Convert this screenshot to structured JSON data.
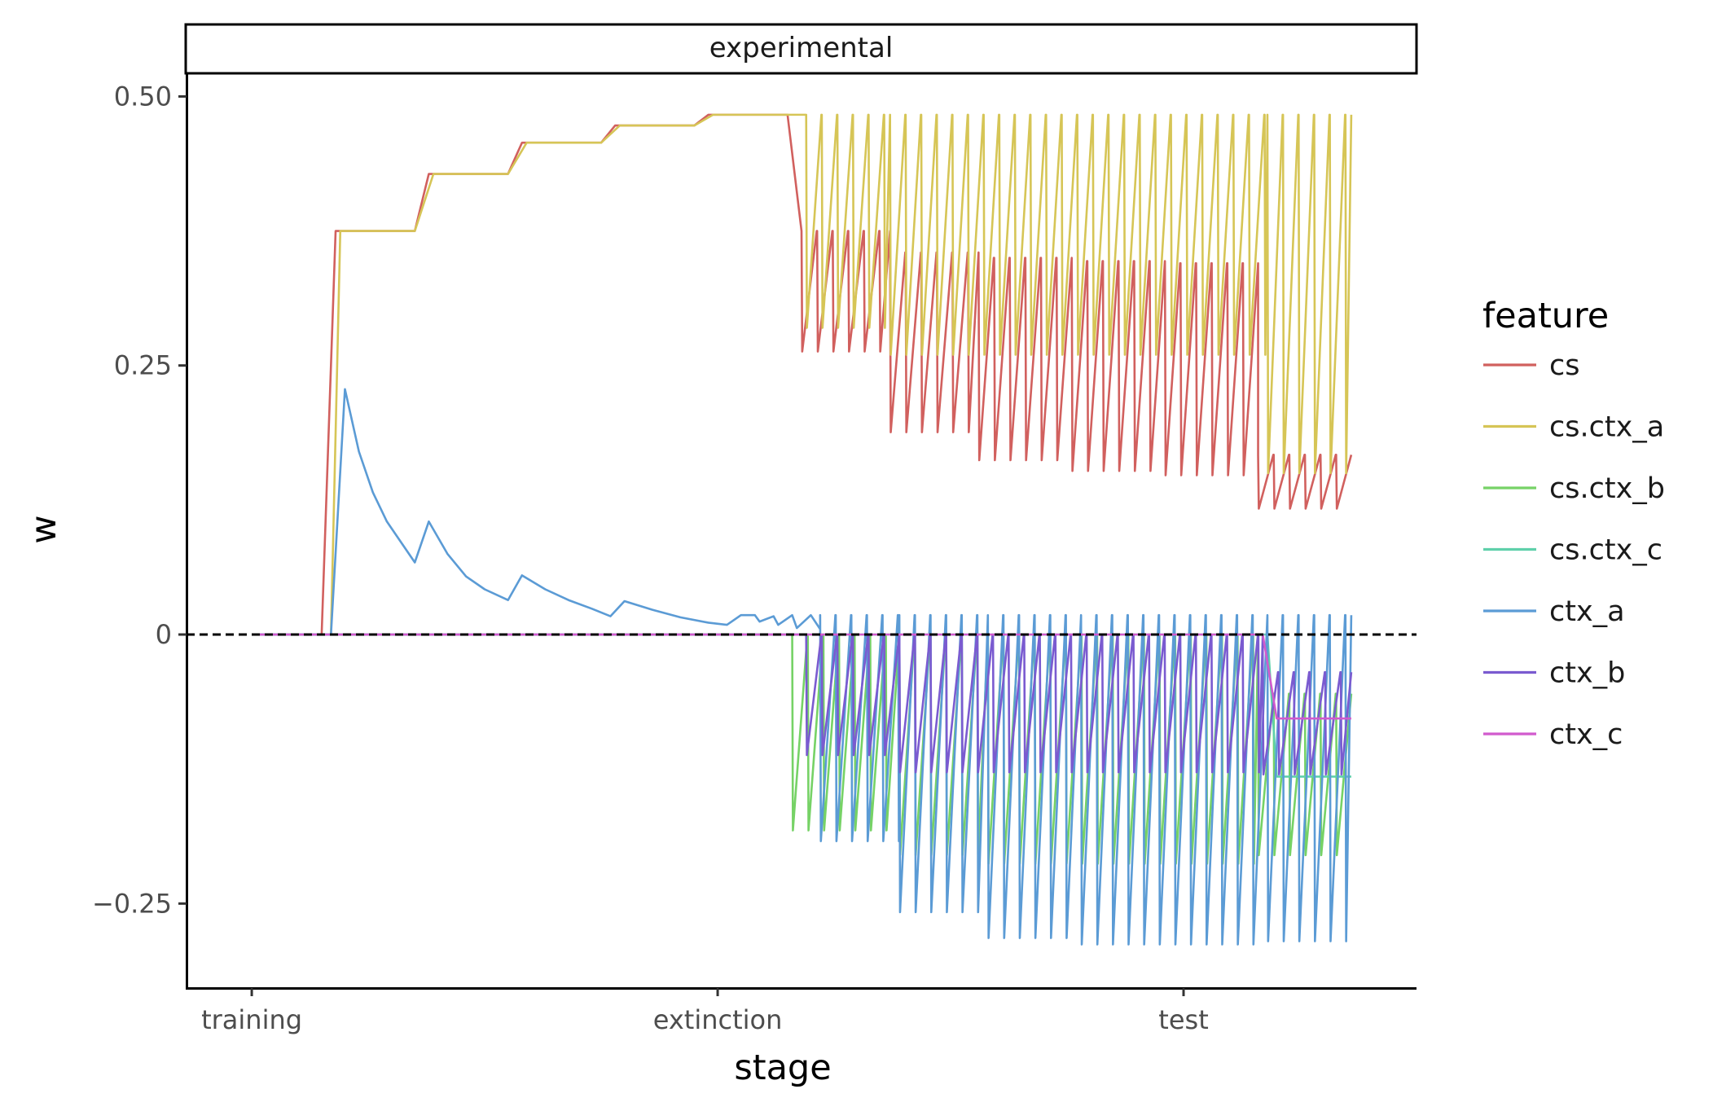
{
  "chart_data": {
    "type": "line",
    "facet": "experimental",
    "xlabel": "stage",
    "ylabel": "w",
    "x_ticks": [
      "training",
      "extinction",
      "test"
    ],
    "y_ticks": [
      {
        "value": 0.5,
        "label": "0.50"
      },
      {
        "value": 0.25,
        "label": "0.25"
      },
      {
        "value": 0,
        "label": "0"
      },
      {
        "value": -0.25,
        "label": "−0.25"
      }
    ],
    "xlim": [
      -0.14,
      2.5
    ],
    "ylim": [
      -0.3285,
      0.5215
    ],
    "reference_line": {
      "y": 0,
      "style": "dashed",
      "color": "#000000"
    },
    "legend": {
      "title": "feature",
      "position": "right"
    },
    "series": [
      {
        "name": "cs",
        "color": "#D1605E",
        "segments": [
          {
            "type": "line",
            "points": [
              [
                0,
                0
              ],
              [
                0.15,
                0
              ],
              [
                0.18,
                0.375
              ],
              [
                0.35,
                0.375
              ],
              [
                0.38,
                0.428
              ],
              [
                0.55,
                0.428
              ],
              [
                0.58,
                0.457
              ],
              [
                0.75,
                0.457
              ],
              [
                0.78,
                0.473
              ],
              [
                0.95,
                0.473
              ],
              [
                0.98,
                0.483
              ],
              [
                1.15,
                0.483
              ],
              [
                1.18,
                0.375
              ]
            ]
          },
          {
            "type": "saw",
            "start": 1.18,
            "end": 1.37,
            "period": 0.0335,
            "high": 0.375,
            "low": 0.263
          },
          {
            "type": "saw",
            "start": 1.37,
            "end": 1.56,
            "period": 0.0335,
            "high": 0.355,
            "low": 0.188
          },
          {
            "type": "saw",
            "start": 1.56,
            "end": 1.76,
            "period": 0.0335,
            "high": 0.35,
            "low": 0.162
          },
          {
            "type": "saw",
            "start": 1.76,
            "end": 1.96,
            "period": 0.0335,
            "high": 0.347,
            "low": 0.152
          },
          {
            "type": "saw",
            "start": 1.96,
            "end": 2.16,
            "period": 0.0335,
            "high": 0.345,
            "low": 0.148
          },
          {
            "type": "saw",
            "start": 2.16,
            "end": 2.36,
            "period": 0.0335,
            "high": 0.167,
            "low": 0.117
          }
        ]
      },
      {
        "name": "cs.ctx_a",
        "color": "#D6C556",
        "segments": [
          {
            "type": "line",
            "points": [
              [
                0,
                0
              ],
              [
                0.17,
                0
              ],
              [
                0.19,
                0.375
              ],
              [
                0.35,
                0.375
              ],
              [
                0.39,
                0.428
              ],
              [
                0.55,
                0.428
              ],
              [
                0.59,
                0.457
              ],
              [
                0.75,
                0.457
              ],
              [
                0.79,
                0.473
              ],
              [
                0.95,
                0.473
              ],
              [
                0.99,
                0.483
              ],
              [
                1.19,
                0.483
              ]
            ]
          },
          {
            "type": "saw",
            "start": 1.19,
            "end": 1.37,
            "period": 0.0335,
            "high": 0.483,
            "low": 0.285
          },
          {
            "type": "saw",
            "start": 1.37,
            "end": 2.18,
            "period": 0.0335,
            "high": 0.483,
            "low": 0.26
          },
          {
            "type": "saw",
            "start": 2.18,
            "end": 2.36,
            "period": 0.0335,
            "high": 0.483,
            "low": 0.15
          }
        ]
      },
      {
        "name": "cs.ctx_b",
        "color": "#76D266",
        "segments": [
          {
            "type": "line",
            "points": [
              [
                0,
                0
              ],
              [
                1.16,
                0
              ]
            ]
          },
          {
            "type": "saw",
            "start": 1.16,
            "end": 1.39,
            "period": 0.0335,
            "high": 0,
            "low": -0.182
          },
          {
            "type": "saw",
            "start": 1.39,
            "end": 1.58,
            "period": 0.0335,
            "high": 0,
            "low": -0.205
          },
          {
            "type": "saw",
            "start": 1.58,
            "end": 2.16,
            "period": 0.0335,
            "high": 0,
            "low": -0.213
          },
          {
            "type": "saw",
            "start": 2.16,
            "end": 2.36,
            "period": 0.0335,
            "high": -0.055,
            "low": -0.205
          }
        ]
      },
      {
        "name": "cs.ctx_c",
        "color": "#5FD0AA",
        "segments": [
          {
            "type": "line",
            "points": [
              [
                0,
                0
              ],
              [
                2.18,
                0
              ],
              [
                2.2,
                -0.132
              ],
              [
                2.36,
                -0.132
              ]
            ]
          }
        ]
      },
      {
        "name": "ctx_a",
        "color": "#5B9BD5",
        "segments": [
          {
            "type": "line",
            "points": [
              [
                0,
                0
              ],
              [
                0.17,
                0
              ],
              [
                0.2,
                0.228
              ],
              [
                0.23,
                0.17
              ],
              [
                0.26,
                0.132
              ],
              [
                0.29,
                0.105
              ],
              [
                0.32,
                0.086
              ],
              [
                0.35,
                0.067
              ],
              [
                0.38,
                0.105
              ],
              [
                0.42,
                0.075
              ],
              [
                0.46,
                0.054
              ],
              [
                0.5,
                0.042
              ],
              [
                0.55,
                0.032
              ],
              [
                0.58,
                0.055
              ],
              [
                0.63,
                0.042
              ],
              [
                0.68,
                0.032
              ],
              [
                0.73,
                0.024
              ],
              [
                0.77,
                0.017
              ],
              [
                0.8,
                0.031
              ],
              [
                0.86,
                0.023
              ],
              [
                0.92,
                0.016
              ],
              [
                0.98,
                0.011
              ],
              [
                1.02,
                0.009
              ],
              [
                1.05,
                0.018
              ],
              [
                1.08,
                0.018
              ],
              [
                1.09,
                0.012
              ],
              [
                1.12,
                0.017
              ],
              [
                1.13,
                0.009
              ],
              [
                1.16,
                0.018
              ],
              [
                1.17,
                0.006
              ],
              [
                1.2,
                0.018
              ],
              [
                1.22,
                0.005
              ]
            ]
          },
          {
            "type": "saw",
            "start": 1.22,
            "end": 1.39,
            "period": 0.0335,
            "high": 0.018,
            "low": -0.192
          },
          {
            "type": "saw",
            "start": 1.39,
            "end": 1.58,
            "period": 0.0335,
            "high": 0.018,
            "low": -0.258
          },
          {
            "type": "saw",
            "start": 1.58,
            "end": 1.78,
            "period": 0.0335,
            "high": 0.018,
            "low": -0.282
          },
          {
            "type": "saw",
            "start": 1.78,
            "end": 2.18,
            "period": 0.0335,
            "high": 0.018,
            "low": -0.288
          },
          {
            "type": "saw",
            "start": 2.18,
            "end": 2.36,
            "period": 0.0335,
            "high": 0.018,
            "low": -0.285
          }
        ]
      },
      {
        "name": "ctx_b",
        "color": "#7A5BD0",
        "segments": [
          {
            "type": "line",
            "points": [
              [
                0,
                0
              ],
              [
                1.19,
                0
              ]
            ]
          },
          {
            "type": "saw",
            "start": 1.19,
            "end": 1.39,
            "period": 0.0335,
            "high": 0,
            "low": -0.112
          },
          {
            "type": "saw",
            "start": 1.39,
            "end": 2.17,
            "period": 0.0335,
            "high": 0,
            "low": -0.128
          },
          {
            "type": "saw",
            "start": 2.17,
            "end": 2.36,
            "period": 0.0335,
            "high": -0.035,
            "low": -0.13
          }
        ]
      },
      {
        "name": "ctx_c",
        "color": "#D15ACD",
        "segments": [
          {
            "type": "line",
            "points": [
              [
                0,
                0
              ],
              [
                2.17,
                0
              ],
              [
                2.2,
                -0.078
              ],
              [
                2.36,
                -0.078
              ]
            ]
          }
        ]
      }
    ]
  }
}
